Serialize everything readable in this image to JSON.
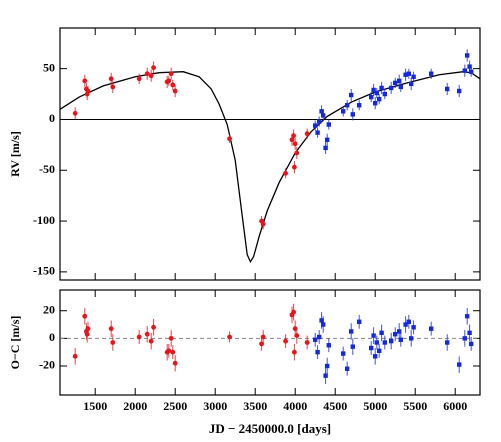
{
  "chart_data": [
    {
      "type": "scatter",
      "ylabel": "RV [m/s]",
      "xlim": [
        1060,
        6310
      ],
      "ylim": [
        -158,
        90
      ],
      "xticks": [
        1500,
        2000,
        2500,
        3000,
        3500,
        4000,
        4500,
        5000,
        5500,
        6000
      ],
      "show_xticklabels": false,
      "yticks": [
        50,
        0,
        -50,
        -100,
        -150
      ],
      "hline": 0,
      "hline_dashed": false,
      "series": [
        {
          "type": "line",
          "color": "#000000",
          "x": [
            1060,
            1300,
            1600,
            2000,
            2300,
            2600,
            2800,
            2950,
            3050,
            3150,
            3250,
            3330,
            3400,
            3440,
            3480,
            3550,
            3650,
            3800,
            4000,
            4200,
            4400,
            4700,
            5000,
            5400,
            5800,
            6100,
            6200,
            6310
          ],
          "values": [
            10,
            22,
            33,
            42,
            46,
            47,
            42,
            30,
            15,
            -5,
            -40,
            -90,
            -133,
            -140,
            -135,
            -115,
            -90,
            -62,
            -33,
            -12,
            3,
            17,
            27,
            36,
            44,
            47,
            46,
            40
          ]
        },
        {
          "type": "errorbar",
          "color": "#e8141c",
          "marker": "circle",
          "x": [
            1250,
            1370,
            1390,
            1400,
            1410,
            1700,
            1720,
            2050,
            2150,
            2200,
            2230,
            2400,
            2420,
            2450,
            2470,
            2500,
            3180,
            3580,
            3600,
            3880,
            3960,
            3980,
            3990,
            4000,
            4020,
            4150
          ],
          "values": [
            6,
            38,
            30,
            25,
            28,
            40,
            32,
            40,
            45,
            43,
            51,
            37,
            38,
            45,
            34,
            28,
            -19,
            -100,
            -103,
            -53,
            -20,
            -16,
            -47,
            -24,
            -33,
            -14
          ],
          "errors": [
            6,
            6,
            6,
            6,
            5,
            6,
            6,
            5,
            6,
            6,
            6,
            6,
            5,
            6,
            5,
            6,
            4,
            5,
            5,
            5,
            6,
            6,
            6,
            6,
            6,
            5
          ]
        },
        {
          "type": "errorbar",
          "color": "#1428e0",
          "marker": "square",
          "x": [
            4250,
            4280,
            4300,
            4330,
            4350,
            4380,
            4400,
            4420,
            4600,
            4650,
            4700,
            4720,
            4800,
            4950,
            4980,
            5000,
            5020,
            5050,
            5080,
            5120,
            5200,
            5250,
            5300,
            5320,
            5380,
            5420,
            5450,
            5480,
            5700,
            5900,
            6050,
            6120,
            6150,
            6180,
            6200
          ],
          "values": [
            -6,
            -13,
            -2,
            8,
            4,
            -28,
            -20,
            -5,
            8,
            14,
            24,
            5,
            14,
            22,
            29,
            16,
            26,
            20,
            31,
            25,
            31,
            36,
            38,
            32,
            44,
            45,
            35,
            42,
            45,
            30,
            28,
            48,
            63,
            52,
            47
          ],
          "errors": [
            5,
            5,
            5,
            6,
            6,
            6,
            6,
            5,
            5,
            5,
            6,
            6,
            5,
            5,
            6,
            6,
            5,
            5,
            6,
            5,
            6,
            5,
            6,
            5,
            6,
            5,
            6,
            5,
            5,
            6,
            6,
            6,
            6,
            6,
            5
          ]
        }
      ]
    },
    {
      "type": "scatter",
      "ylabel": "O−C [m/s]",
      "xlabel": "JD − 2450000.0 [days]",
      "xlim": [
        1060,
        6310
      ],
      "ylim": [
        -41,
        35
      ],
      "xticks": [
        1500,
        2000,
        2500,
        3000,
        3500,
        4000,
        4500,
        5000,
        5500,
        6000
      ],
      "show_xticklabels": true,
      "yticks": [
        20,
        0,
        -20
      ],
      "hline": 0,
      "hline_dashed": true,
      "series": [
        {
          "type": "errorbar",
          "color": "#e8141c",
          "marker": "circle",
          "x": [
            1250,
            1370,
            1390,
            1400,
            1410,
            1700,
            1720,
            2050,
            2150,
            2200,
            2230,
            2400,
            2420,
            2450,
            2470,
            2500,
            3180,
            3580,
            3600,
            3880,
            3960,
            3980,
            3990,
            4000,
            4020,
            4150
          ],
          "values": [
            -13,
            16,
            5,
            3,
            7,
            7,
            -3,
            1,
            3,
            -2,
            8,
            -10,
            -9,
            0,
            -10,
            -18,
            1,
            -4,
            1,
            -2,
            17,
            19,
            -10,
            7,
            2,
            -3
          ],
          "errors": [
            6,
            6,
            6,
            6,
            5,
            6,
            6,
            5,
            6,
            6,
            6,
            6,
            5,
            6,
            5,
            6,
            4,
            5,
            5,
            5,
            6,
            6,
            6,
            6,
            6,
            5
          ]
        },
        {
          "type": "errorbar",
          "color": "#1428e0",
          "marker": "square",
          "x": [
            4250,
            4280,
            4300,
            4330,
            4350,
            4380,
            4400,
            4420,
            4600,
            4650,
            4700,
            4720,
            4800,
            4950,
            4980,
            5000,
            5020,
            5050,
            5080,
            5120,
            5200,
            5250,
            5300,
            5320,
            5380,
            5420,
            5450,
            5480,
            5700,
            5900,
            6050,
            6120,
            6150,
            6180,
            6200
          ],
          "values": [
            -1,
            -10,
            1,
            13,
            10,
            -27,
            -20,
            -5,
            -11,
            -22,
            5,
            -6,
            12,
            -7,
            2,
            -13,
            -3,
            -9,
            4,
            -3,
            -2,
            3,
            5,
            -1,
            10,
            12,
            0,
            8,
            7,
            -3,
            -19,
            0,
            16,
            4,
            -4
          ],
          "errors": [
            5,
            5,
            5,
            6,
            6,
            6,
            6,
            5,
            5,
            5,
            6,
            6,
            5,
            5,
            6,
            6,
            5,
            5,
            6,
            5,
            6,
            5,
            6,
            5,
            6,
            5,
            6,
            5,
            5,
            6,
            6,
            6,
            6,
            6,
            5
          ]
        }
      ]
    }
  ]
}
